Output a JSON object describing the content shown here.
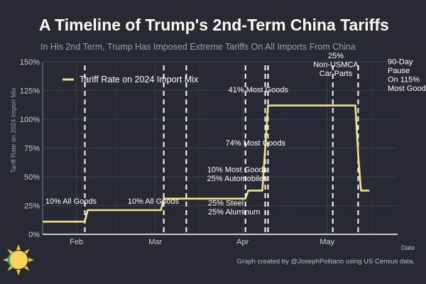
{
  "header": {
    "title": "A Timeline of Trump's 2nd-Term China Tariffs",
    "subtitle": "In His 2nd Term, Trump Has Imposed Extreme Tariffs On All Imports From China"
  },
  "footer": {
    "credit": "Graph created by @JosephPolitano using US Census data."
  },
  "logo": {
    "icon": "sun-logo-icon"
  },
  "colors": {
    "background": "#272a33",
    "line": "#f7e08c",
    "grid": "#3d414c",
    "axis": "#ffffff"
  },
  "chart_data": {
    "type": "line",
    "ylabel": "Tariff Rate on 2024 Import Mix",
    "xlabel": "Date",
    "ylim": [
      0,
      150
    ],
    "yticks": [
      "0%",
      "25%",
      "50%",
      "75%",
      "100%",
      "125%",
      "150%"
    ],
    "xticks": [
      {
        "label": "Feb",
        "date": "2025-02-01"
      },
      {
        "label": "Mar",
        "date": "2025-03-01"
      },
      {
        "label": "Apr",
        "date": "2025-04-01"
      },
      {
        "label": "May",
        "date": "2025-05-01"
      }
    ],
    "xlim": [
      "2025-01-20",
      "2025-05-26"
    ],
    "grid": true,
    "legend": {
      "position": "top-left",
      "label": "Tariff Rate on 2024 Import Mix"
    },
    "series": [
      {
        "name": "Tariff Rate on 2024 Import Mix",
        "points": [
          {
            "date": "2025-01-20",
            "value": 11
          },
          {
            "date": "2025-02-04",
            "value": 11
          },
          {
            "date": "2025-02-05",
            "value": 21
          },
          {
            "date": "2025-03-03",
            "value": 21
          },
          {
            "date": "2025-03-04",
            "value": 31
          },
          {
            "date": "2025-04-02",
            "value": 31
          },
          {
            "date": "2025-04-03",
            "value": 38
          },
          {
            "date": "2025-04-08",
            "value": 38
          },
          {
            "date": "2025-04-09",
            "value": 75
          },
          {
            "date": "2025-04-10",
            "value": 112
          },
          {
            "date": "2025-05-11",
            "value": 112
          },
          {
            "date": "2025-05-12",
            "value": 70
          },
          {
            "date": "2025-05-13",
            "value": 38
          },
          {
            "date": "2025-05-16",
            "value": 38
          }
        ]
      }
    ],
    "events": [
      {
        "date": "2025-02-04",
        "label": [
          "10% All Goods"
        ],
        "side": "left"
      },
      {
        "date": "2025-03-04",
        "label": [
          "10% All Goods"
        ],
        "side": "left"
      },
      {
        "date": "2025-03-12",
        "label": [
          "25% Steel",
          "25% Aluminum"
        ],
        "side": "below"
      },
      {
        "date": "2025-04-02",
        "label": [
          "10% Most Goods",
          "25% Automobiles"
        ],
        "side": "left"
      },
      {
        "date": "2025-04-09",
        "label": [
          "74% Most Goods"
        ],
        "side": "left"
      },
      {
        "date": "2025-04-10",
        "label": [
          "41% Most Goods"
        ],
        "side": "left"
      },
      {
        "date": "2025-05-03",
        "label": [
          "25%",
          "Non-USMCA",
          "Car Parts"
        ],
        "side": "left"
      },
      {
        "date": "2025-05-12",
        "label": [
          "90-Day",
          "Pause",
          "On 115%",
          "Most Goods"
        ],
        "side": "right"
      }
    ]
  }
}
